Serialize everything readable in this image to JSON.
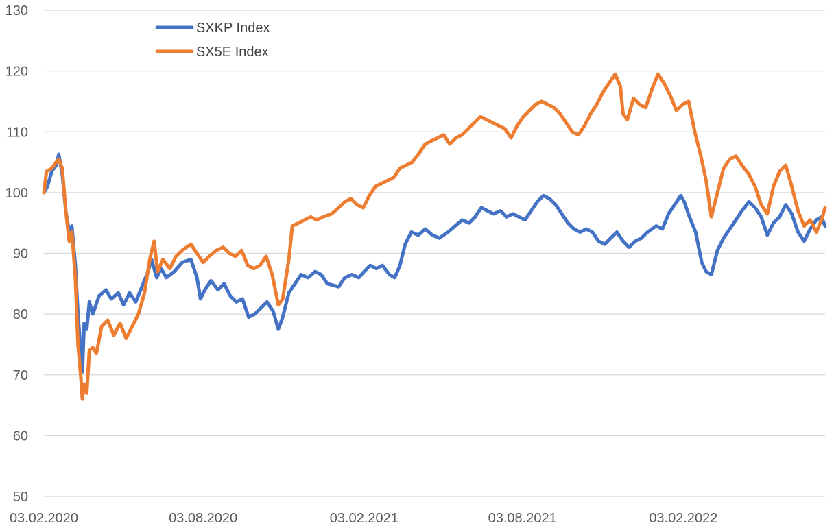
{
  "chart_data": {
    "type": "line",
    "title": "",
    "xlabel": "",
    "ylabel": "",
    "ylim": [
      50,
      130
    ],
    "yticks": [
      50,
      60,
      70,
      80,
      90,
      100,
      110,
      120,
      130
    ],
    "xlim": [
      "2020-02-03",
      "2022-07-15"
    ],
    "xtick_labels": [
      {
        "date": "2020-02-03",
        "label": "03.02.2020"
      },
      {
        "date": "2020-08-03",
        "label": "03.08.2020"
      },
      {
        "date": "2021-02-03",
        "label": "03.02.2021"
      },
      {
        "date": "2021-08-03",
        "label": "03.08.2021"
      },
      {
        "date": "2022-02-03",
        "label": "03.02.2022"
      }
    ],
    "grid": true,
    "legend_position": "top-left",
    "series": [
      {
        "name": "SXKP Index",
        "color": "#4472C4",
        "points": [
          [
            "2020-02-03",
            100.0
          ],
          [
            "2020-02-07",
            101.0
          ],
          [
            "2020-02-12",
            103.5
          ],
          [
            "2020-02-17",
            104.5
          ],
          [
            "2020-02-20",
            106.3
          ],
          [
            "2020-02-24",
            103.0
          ],
          [
            "2020-02-28",
            97.0
          ],
          [
            "2020-03-03",
            93.5
          ],
          [
            "2020-03-06",
            94.5
          ],
          [
            "2020-03-10",
            88.0
          ],
          [
            "2020-03-13",
            80.0
          ],
          [
            "2020-03-16",
            74.0
          ],
          [
            "2020-03-18",
            70.5
          ],
          [
            "2020-03-20",
            78.5
          ],
          [
            "2020-03-23",
            77.5
          ],
          [
            "2020-03-26",
            82.0
          ],
          [
            "2020-03-30",
            80.0
          ],
          [
            "2020-04-06",
            83.0
          ],
          [
            "2020-04-14",
            84.0
          ],
          [
            "2020-04-20",
            82.5
          ],
          [
            "2020-04-28",
            83.5
          ],
          [
            "2020-05-04",
            81.5
          ],
          [
            "2020-05-11",
            83.5
          ],
          [
            "2020-05-18",
            82.0
          ],
          [
            "2020-05-25",
            84.5
          ],
          [
            "2020-06-01",
            87.0
          ],
          [
            "2020-06-05",
            89.0
          ],
          [
            "2020-06-11",
            86.0
          ],
          [
            "2020-06-16",
            87.5
          ],
          [
            "2020-06-22",
            86.0
          ],
          [
            "2020-07-01",
            87.0
          ],
          [
            "2020-07-10",
            88.5
          ],
          [
            "2020-07-20",
            89.0
          ],
          [
            "2020-07-27",
            86.0
          ],
          [
            "2020-07-31",
            82.5
          ],
          [
            "2020-08-05",
            84.0
          ],
          [
            "2020-08-12",
            85.5
          ],
          [
            "2020-08-20",
            84.0
          ],
          [
            "2020-08-27",
            85.0
          ],
          [
            "2020-09-03",
            83.0
          ],
          [
            "2020-09-10",
            82.0
          ],
          [
            "2020-09-17",
            82.5
          ],
          [
            "2020-09-24",
            79.5
          ],
          [
            "2020-10-01",
            80.0
          ],
          [
            "2020-10-08",
            81.0
          ],
          [
            "2020-10-15",
            82.0
          ],
          [
            "2020-10-22",
            80.5
          ],
          [
            "2020-10-28",
            77.5
          ],
          [
            "2020-11-02",
            79.5
          ],
          [
            "2020-11-09",
            83.5
          ],
          [
            "2020-11-16",
            85.0
          ],
          [
            "2020-11-23",
            86.5
          ],
          [
            "2020-12-01",
            86.0
          ],
          [
            "2020-12-09",
            87.0
          ],
          [
            "2020-12-16",
            86.5
          ],
          [
            "2020-12-23",
            85.0
          ],
          [
            "2021-01-05",
            84.5
          ],
          [
            "2021-01-12",
            86.0
          ],
          [
            "2021-01-20",
            86.5
          ],
          [
            "2021-01-28",
            86.0
          ],
          [
            "2021-02-03",
            87.0
          ],
          [
            "2021-02-10",
            88.0
          ],
          [
            "2021-02-17",
            87.5
          ],
          [
            "2021-02-24",
            88.0
          ],
          [
            "2021-03-04",
            86.5
          ],
          [
            "2021-03-10",
            86.0
          ],
          [
            "2021-03-16",
            88.0
          ],
          [
            "2021-03-22",
            91.5
          ],
          [
            "2021-03-29",
            93.5
          ],
          [
            "2021-04-06",
            93.0
          ],
          [
            "2021-04-14",
            94.0
          ],
          [
            "2021-04-22",
            93.0
          ],
          [
            "2021-04-30",
            92.5
          ],
          [
            "2021-05-10",
            93.5
          ],
          [
            "2021-05-18",
            94.5
          ],
          [
            "2021-05-26",
            95.5
          ],
          [
            "2021-06-03",
            95.0
          ],
          [
            "2021-06-10",
            96.0
          ],
          [
            "2021-06-17",
            97.5
          ],
          [
            "2021-06-24",
            97.0
          ],
          [
            "2021-07-01",
            96.5
          ],
          [
            "2021-07-09",
            97.0
          ],
          [
            "2021-07-16",
            96.0
          ],
          [
            "2021-07-23",
            96.5
          ],
          [
            "2021-07-30",
            96.0
          ],
          [
            "2021-08-06",
            95.5
          ],
          [
            "2021-08-13",
            97.0
          ],
          [
            "2021-08-20",
            98.5
          ],
          [
            "2021-08-27",
            99.5
          ],
          [
            "2021-09-03",
            99.0
          ],
          [
            "2021-09-10",
            98.0
          ],
          [
            "2021-09-17",
            96.5
          ],
          [
            "2021-09-24",
            95.0
          ],
          [
            "2021-10-01",
            94.0
          ],
          [
            "2021-10-08",
            93.5
          ],
          [
            "2021-10-15",
            94.0
          ],
          [
            "2021-10-22",
            93.5
          ],
          [
            "2021-10-29",
            92.0
          ],
          [
            "2021-11-05",
            91.5
          ],
          [
            "2021-11-12",
            92.5
          ],
          [
            "2021-11-19",
            93.5
          ],
          [
            "2021-11-26",
            92.0
          ],
          [
            "2021-12-03",
            91.0
          ],
          [
            "2021-12-10",
            92.0
          ],
          [
            "2021-12-17",
            92.5
          ],
          [
            "2021-12-24",
            93.5
          ],
          [
            "2022-01-03",
            94.5
          ],
          [
            "2022-01-10",
            94.0
          ],
          [
            "2022-01-17",
            96.5
          ],
          [
            "2022-01-24",
            98.0
          ],
          [
            "2022-01-31",
            99.5
          ],
          [
            "2022-02-04",
            98.5
          ],
          [
            "2022-02-10",
            96.0
          ],
          [
            "2022-02-17",
            93.5
          ],
          [
            "2022-02-24",
            88.5
          ],
          [
            "2022-03-01",
            87.0
          ],
          [
            "2022-03-07",
            86.5
          ],
          [
            "2022-03-14",
            90.5
          ],
          [
            "2022-03-21",
            92.5
          ],
          [
            "2022-03-28",
            94.0
          ],
          [
            "2022-04-04",
            95.5
          ],
          [
            "2022-04-11",
            97.0
          ],
          [
            "2022-04-19",
            98.5
          ],
          [
            "2022-04-26",
            97.5
          ],
          [
            "2022-05-03",
            96.0
          ],
          [
            "2022-05-10",
            93.0
          ],
          [
            "2022-05-17",
            95.0
          ],
          [
            "2022-05-24",
            96.0
          ],
          [
            "2022-05-31",
            98.0
          ],
          [
            "2022-06-07",
            96.5
          ],
          [
            "2022-06-14",
            93.5
          ],
          [
            "2022-06-21",
            92.0
          ],
          [
            "2022-06-28",
            94.0
          ],
          [
            "2022-07-05",
            95.5
          ],
          [
            "2022-07-11",
            96.0
          ],
          [
            "2022-07-15",
            94.5
          ]
        ]
      },
      {
        "name": "SX5E Index",
        "color": "#ED7D31",
        "points": [
          [
            "2020-02-03",
            100.0
          ],
          [
            "2020-02-06",
            103.5
          ],
          [
            "2020-02-12",
            104.0
          ],
          [
            "2020-02-17",
            105.0
          ],
          [
            "2020-02-20",
            105.5
          ],
          [
            "2020-02-24",
            104.0
          ],
          [
            "2020-02-28",
            97.0
          ],
          [
            "2020-03-03",
            92.0
          ],
          [
            "2020-03-06",
            93.5
          ],
          [
            "2020-03-10",
            86.0
          ],
          [
            "2020-03-13",
            75.0
          ],
          [
            "2020-03-16",
            70.0
          ],
          [
            "2020-03-18",
            66.0
          ],
          [
            "2020-03-20",
            68.5
          ],
          [
            "2020-03-23",
            67.0
          ],
          [
            "2020-03-26",
            74.0
          ],
          [
            "2020-03-30",
            74.5
          ],
          [
            "2020-04-03",
            73.5
          ],
          [
            "2020-04-09",
            78.0
          ],
          [
            "2020-04-16",
            79.0
          ],
          [
            "2020-04-23",
            76.5
          ],
          [
            "2020-04-30",
            78.5
          ],
          [
            "2020-05-07",
            76.0
          ],
          [
            "2020-05-14",
            78.0
          ],
          [
            "2020-05-21",
            80.0
          ],
          [
            "2020-05-28",
            83.5
          ],
          [
            "2020-06-03",
            89.0
          ],
          [
            "2020-06-08",
            92.0
          ],
          [
            "2020-06-12",
            87.0
          ],
          [
            "2020-06-18",
            89.0
          ],
          [
            "2020-06-26",
            87.5
          ],
          [
            "2020-07-03",
            89.5
          ],
          [
            "2020-07-10",
            90.5
          ],
          [
            "2020-07-20",
            91.5
          ],
          [
            "2020-07-27",
            90.0
          ],
          [
            "2020-08-03",
            88.5
          ],
          [
            "2020-08-10",
            89.5
          ],
          [
            "2020-08-18",
            90.5
          ],
          [
            "2020-08-26",
            91.0
          ],
          [
            "2020-09-02",
            90.0
          ],
          [
            "2020-09-09",
            89.5
          ],
          [
            "2020-09-16",
            90.5
          ],
          [
            "2020-09-23",
            88.0
          ],
          [
            "2020-09-30",
            87.5
          ],
          [
            "2020-10-07",
            88.0
          ],
          [
            "2020-10-14",
            89.5
          ],
          [
            "2020-10-21",
            86.5
          ],
          [
            "2020-10-28",
            81.5
          ],
          [
            "2020-11-02",
            82.5
          ],
          [
            "2020-11-09",
            89.0
          ],
          [
            "2020-11-13",
            94.5
          ],
          [
            "2020-11-20",
            95.0
          ],
          [
            "2020-11-27",
            95.5
          ],
          [
            "2020-12-04",
            96.0
          ],
          [
            "2020-12-11",
            95.5
          ],
          [
            "2020-12-18",
            96.0
          ],
          [
            "2020-12-28",
            96.5
          ],
          [
            "2021-01-05",
            97.5
          ],
          [
            "2021-01-12",
            98.5
          ],
          [
            "2021-01-19",
            99.0
          ],
          [
            "2021-01-26",
            98.0
          ],
          [
            "2021-02-02",
            97.5
          ],
          [
            "2021-02-09",
            99.5
          ],
          [
            "2021-02-16",
            101.0
          ],
          [
            "2021-02-23",
            101.5
          ],
          [
            "2021-03-02",
            102.0
          ],
          [
            "2021-03-09",
            102.5
          ],
          [
            "2021-03-16",
            104.0
          ],
          [
            "2021-03-23",
            104.5
          ],
          [
            "2021-03-30",
            105.0
          ],
          [
            "2021-04-07",
            106.5
          ],
          [
            "2021-04-14",
            108.0
          ],
          [
            "2021-04-21",
            108.5
          ],
          [
            "2021-04-28",
            109.0
          ],
          [
            "2021-05-05",
            109.5
          ],
          [
            "2021-05-12",
            108.0
          ],
          [
            "2021-05-19",
            109.0
          ],
          [
            "2021-05-26",
            109.5
          ],
          [
            "2021-06-02",
            110.5
          ],
          [
            "2021-06-09",
            111.5
          ],
          [
            "2021-06-16",
            112.5
          ],
          [
            "2021-06-23",
            112.0
          ],
          [
            "2021-06-30",
            111.5
          ],
          [
            "2021-07-07",
            111.0
          ],
          [
            "2021-07-14",
            110.5
          ],
          [
            "2021-07-21",
            109.0
          ],
          [
            "2021-07-28",
            111.0
          ],
          [
            "2021-08-04",
            112.5
          ],
          [
            "2021-08-11",
            113.5
          ],
          [
            "2021-08-18",
            114.5
          ],
          [
            "2021-08-25",
            115.0
          ],
          [
            "2021-09-01",
            114.5
          ],
          [
            "2021-09-08",
            114.0
          ],
          [
            "2021-09-15",
            113.0
          ],
          [
            "2021-09-22",
            111.5
          ],
          [
            "2021-09-29",
            110.0
          ],
          [
            "2021-10-06",
            109.5
          ],
          [
            "2021-10-13",
            111.0
          ],
          [
            "2021-10-20",
            113.0
          ],
          [
            "2021-10-27",
            114.5
          ],
          [
            "2021-11-03",
            116.5
          ],
          [
            "2021-11-10",
            118.0
          ],
          [
            "2021-11-17",
            119.5
          ],
          [
            "2021-11-23",
            117.5
          ],
          [
            "2021-11-26",
            113.0
          ],
          [
            "2021-12-01",
            112.0
          ],
          [
            "2021-12-08",
            115.5
          ],
          [
            "2021-12-15",
            114.5
          ],
          [
            "2021-12-22",
            114.0
          ],
          [
            "2021-12-29",
            117.0
          ],
          [
            "2022-01-05",
            119.5
          ],
          [
            "2022-01-12",
            118.0
          ],
          [
            "2022-01-19",
            116.0
          ],
          [
            "2022-01-26",
            113.5
          ],
          [
            "2022-02-02",
            114.5
          ],
          [
            "2022-02-09",
            115.0
          ],
          [
            "2022-02-16",
            110.0
          ],
          [
            "2022-02-23",
            106.0
          ],
          [
            "2022-03-01",
            102.0
          ],
          [
            "2022-03-07",
            96.0
          ],
          [
            "2022-03-14",
            100.0
          ],
          [
            "2022-03-21",
            104.0
          ],
          [
            "2022-03-28",
            105.5
          ],
          [
            "2022-04-04",
            106.0
          ],
          [
            "2022-04-11",
            104.5
          ],
          [
            "2022-04-19",
            103.0
          ],
          [
            "2022-04-26",
            101.0
          ],
          [
            "2022-05-03",
            98.0
          ],
          [
            "2022-05-10",
            96.5
          ],
          [
            "2022-05-17",
            101.0
          ],
          [
            "2022-05-24",
            103.5
          ],
          [
            "2022-05-31",
            104.5
          ],
          [
            "2022-06-07",
            101.0
          ],
          [
            "2022-06-14",
            97.0
          ],
          [
            "2022-06-21",
            94.5
          ],
          [
            "2022-06-28",
            95.5
          ],
          [
            "2022-07-05",
            93.5
          ],
          [
            "2022-07-11",
            95.5
          ],
          [
            "2022-07-15",
            97.5
          ]
        ]
      }
    ]
  }
}
